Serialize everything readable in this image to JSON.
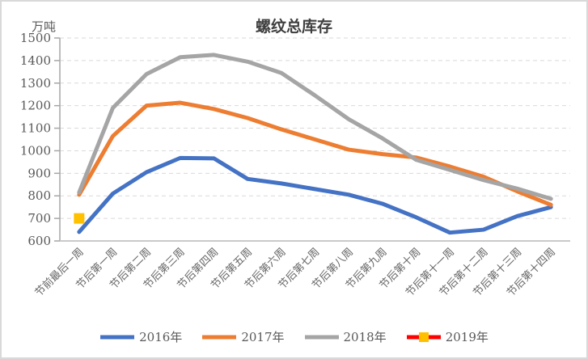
{
  "chart_data": {
    "type": "line",
    "title": "螺纹总库存",
    "unit_label": "万吨",
    "categories": [
      "节前最后一周",
      "节后第一周",
      "节后第二周",
      "节后第三周",
      "节后第四周",
      "节后第五周",
      "节后第六周",
      "节后第七周",
      "节后第八周",
      "节后第九周",
      "节后第十周",
      "节后第十一周",
      "节后第十二周",
      "节后第十三周",
      "节后第十四周"
    ],
    "series": [
      {
        "name": "2016年",
        "color": "#4472C4",
        "values": [
          640,
          810,
          905,
          968,
          966,
          875,
          855,
          830,
          805,
          765,
          705,
          637,
          650,
          710,
          750
        ]
      },
      {
        "name": "2017年",
        "color": "#ED7D31",
        "values": [
          805,
          1065,
          1200,
          1213,
          1185,
          1145,
          1095,
          1050,
          1005,
          985,
          970,
          930,
          885,
          820,
          760
        ]
      },
      {
        "name": "2018年",
        "color": "#A5A5A5",
        "values": [
          815,
          1190,
          1340,
          1415,
          1425,
          1395,
          1345,
          1245,
          1140,
          1055,
          960,
          915,
          870,
          832,
          787
        ]
      },
      {
        "name": "2019年",
        "color": "#FF0000",
        "marker": {
          "shape": "square",
          "fill": "#FFC000",
          "size": 13
        },
        "values": [
          700,
          null,
          null,
          null,
          null,
          null,
          null,
          null,
          null,
          null,
          null,
          null,
          null,
          null,
          null
        ]
      }
    ],
    "ylim": [
      600,
      1500
    ],
    "ytick_step": 100,
    "grid": "horizontal-dashed",
    "legend_position": "bottom",
    "x_label_rotation": -45
  }
}
